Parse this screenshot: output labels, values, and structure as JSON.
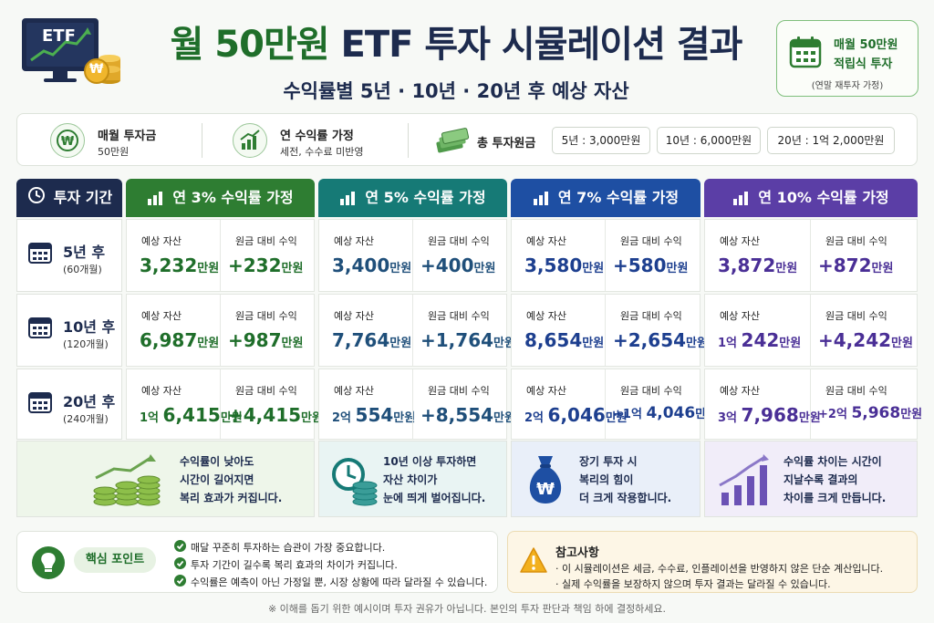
{
  "header": {
    "title_green": "월 50만원",
    "title_dark": " ETF 투자 시뮬레이션 결과",
    "subtitle": "수익률별 5년 · 10년 · 20년 후 예상 자산",
    "monitor_text": "ETF",
    "coin_symbol": "₩",
    "plan_line1": "매월 50만원",
    "plan_line2": "적립식 투자",
    "plan_line3": "(연말 재투자 가정)"
  },
  "info": {
    "monthly_label": "매월 투자금",
    "monthly_value": "50만원",
    "rate_label": "연 수익률 가정",
    "rate_value": "세전, 수수료 미반영",
    "total_label": "총 투자원금",
    "principals": [
      "5년 : 3,000만원",
      "10년 : 6,000만원",
      "20년 : 1억 2,000만원"
    ]
  },
  "table": {
    "period_header": "투자 기간",
    "caption_asset": "예상 자산",
    "caption_gain": "원금 대비 수익",
    "unit": "만원",
    "rows": [
      {
        "year": "5년 후",
        "months": "(60개월)"
      },
      {
        "year": "10년 후",
        "months": "(120개월)"
      },
      {
        "year": "20년 후",
        "months": "(240개월)"
      }
    ],
    "columns": [
      {
        "header": "연 3% 수익률 가정",
        "color": "#2e7d32",
        "cells": [
          {
            "asset_prefix": "",
            "asset_num": "3,232",
            "gain_prefix": "",
            "gain_num": "+232"
          },
          {
            "asset_prefix": "",
            "asset_num": "6,987",
            "gain_prefix": "",
            "gain_num": "+987"
          },
          {
            "asset_prefix": "1억 ",
            "asset_num": "6,415",
            "gain_prefix": "",
            "gain_num": "+4,415"
          }
        ]
      },
      {
        "header": "연 5% 수익률 가정",
        "color": "#167a76",
        "cells": [
          {
            "asset_prefix": "",
            "asset_num": "3,400",
            "gain_prefix": "",
            "gain_num": "+400"
          },
          {
            "asset_prefix": "",
            "asset_num": "7,764",
            "gain_prefix": "",
            "gain_num": "+1,764"
          },
          {
            "asset_prefix": "2억 ",
            "asset_num": "554",
            "gain_prefix": "",
            "gain_num": "+8,554"
          }
        ]
      },
      {
        "header": "연 7% 수익률 가정",
        "color": "#1e4fa3",
        "cells": [
          {
            "asset_prefix": "",
            "asset_num": "3,580",
            "gain_prefix": "",
            "gain_num": "+580"
          },
          {
            "asset_prefix": "",
            "asset_num": "8,654",
            "gain_prefix": "",
            "gain_num": "+2,654"
          },
          {
            "asset_prefix": "2억 ",
            "asset_num": "6,046",
            "gain_prefix": "+1억 ",
            "gain_num": "4,046"
          }
        ]
      },
      {
        "header": "연 10% 수익률 가정",
        "color": "#5b3ea6",
        "cells": [
          {
            "asset_prefix": "",
            "asset_num": "3,872",
            "gain_prefix": "",
            "gain_num": "+872"
          },
          {
            "asset_prefix": "1억 ",
            "asset_num": "242",
            "gain_prefix": "",
            "gain_num": "+4,242"
          },
          {
            "asset_prefix": "3억 ",
            "asset_num": "7,968",
            "gain_prefix": "+2억 ",
            "gain_num": "5,968"
          }
        ]
      }
    ]
  },
  "insights": [
    {
      "lines": [
        "수익률이 낮아도",
        "시간이 길어지면",
        "복리 효과가 커집니다."
      ],
      "icon": "coin-stack-icon"
    },
    {
      "lines": [
        "10년 이상 투자하면",
        "자산 차이가",
        "눈에 띄게 벌어집니다."
      ],
      "icon": "clock-coins-icon"
    },
    {
      "lines": [
        "장기 투자 시",
        "복리의 힘이",
        "더 크게 작용합니다."
      ],
      "icon": "money-bag-icon"
    },
    {
      "lines": [
        "수익률 차이는 시간이",
        "지날수록 결과의",
        "차이를 크게 만듭니다."
      ],
      "icon": "growth-chart-icon"
    }
  ],
  "key_points": {
    "title": "핵심 포인트",
    "items": [
      "매달 꾸준히 투자하는 습관이 가장 중요합니다.",
      "투자 기간이 길수록 복리 효과의 차이가 커집니다.",
      "수익률은 예측이 아닌 가정일 뿐, 시장 상황에 따라 달라질 수 있습니다."
    ]
  },
  "notes": {
    "title": "참고사항",
    "items": [
      "· 이 시뮬레이션은 세금, 수수료, 인플레이션을 반영하지 않은 단순 계산입니다.",
      "· 실제 수익률을 보장하지 않으며 투자 결과는 달라질 수 있습니다."
    ]
  },
  "footer": "※ 이해를 돕기 위한 예시이며 투자 권유가 아닙니다. 본인의 투자 판단과 책임 하에 결정하세요."
}
